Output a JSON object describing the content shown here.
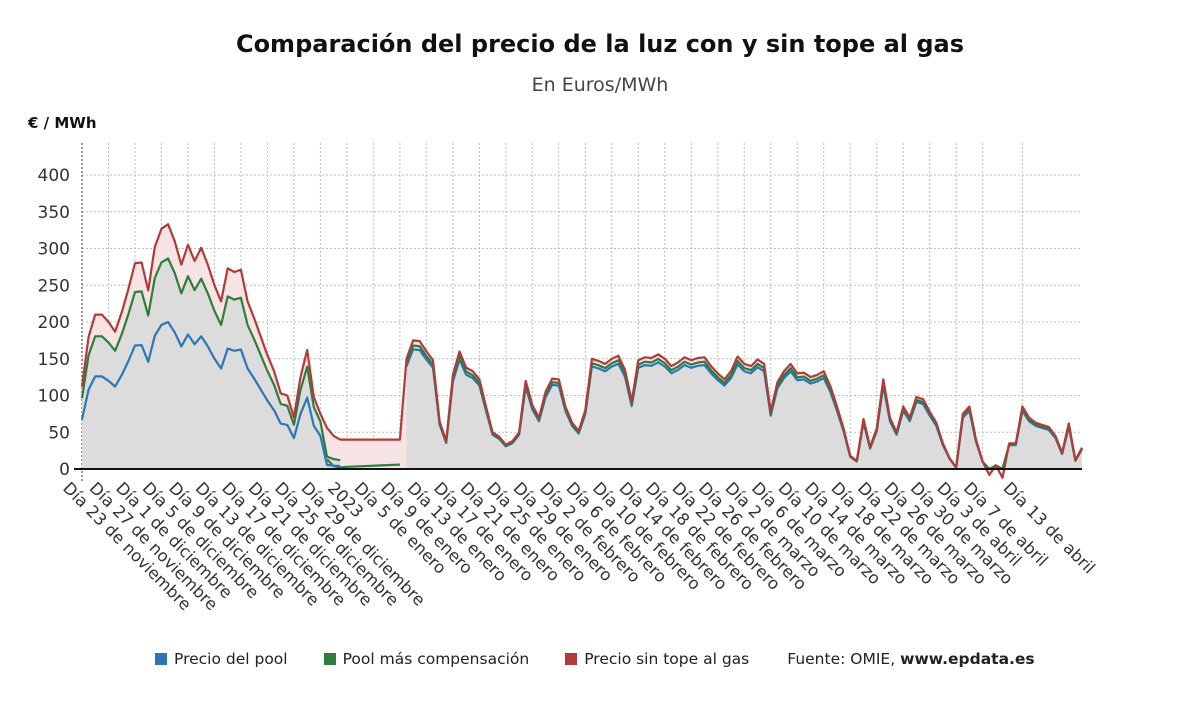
{
  "title": "Comparación del precio de la luz con y sin tope al gas",
  "subtitle": "En Euros/MWh",
  "y_unit": "€ / MWh",
  "colors": {
    "pool": "#2e75b6",
    "compensation": "#2e7d3a",
    "no_cap": "#b23a3a",
    "fill_low": "#dcdcdc",
    "fill_high": "#f6e4e4",
    "grid": "#bdbdbd"
  },
  "legend": {
    "items": [
      {
        "label": "Precio del pool",
        "color": "#2e75b6"
      },
      {
        "label": "Pool más compensación",
        "color": "#2e7d3a"
      },
      {
        "label": "Precio sin tope al gas",
        "color": "#b23a3a"
      }
    ],
    "source_label": "Fuente: OMIE,",
    "source_url": "www.epdata.es"
  },
  "chart_data": {
    "type": "line",
    "title": "Comparación del precio de la luz con y sin tope al gas",
    "subtitle": "En Euros/MWh",
    "ylabel": "€ / MWh",
    "ylim": [
      0,
      430
    ],
    "yticks": [
      0,
      50,
      100,
      150,
      200,
      250,
      300,
      350,
      400
    ],
    "grid": true,
    "legend_position": "bottom",
    "x_tick_labels": [
      "Día 23 de noviembre",
      "Día 27 de noviembre",
      "Día 1 de diciembre",
      "Día 5 de diciembre",
      "Día 9 de diciembre",
      "Día 13 de diciembre",
      "Día 17 de diciembre",
      "Día 21 de diciembre",
      "Día 25 de diciembre",
      "Día 29 de diciembre",
      "2023",
      "Día 5 de enero",
      "Día 9 de enero",
      "Día 13 de enero",
      "Día 17 de enero",
      "Día 21 de enero",
      "Día 25 de enero",
      "Día 29 de enero",
      "Día 2 de febrero",
      "Día 6 de febrero",
      "Día 10 de febrero",
      "Día 14 de febrero",
      "Día 18 de febrero",
      "Día 22 de febrero",
      "Día 26 de febrero",
      "Día 2 de marzo",
      "Día 6 de marzo",
      "Día 10 de marzo",
      "Día 14 de marzo",
      "Día 18 de marzo",
      "Día 22 de marzo",
      "Día 26 de marzo",
      "Día 30 de marzo",
      "Día 3 de abril",
      "Día 7 de abril",
      "Día 13 de abril"
    ],
    "x_range": [
      0,
      142
    ],
    "tick_positions": [
      0,
      4,
      8,
      12,
      16,
      20,
      24,
      28,
      32,
      36,
      40,
      44,
      48,
      52,
      56,
      60,
      64,
      68,
      72,
      76,
      80,
      84,
      88,
      92,
      96,
      100,
      104,
      108,
      112,
      116,
      120,
      124,
      128,
      132,
      136,
      142
    ],
    "series": [
      {
        "name": "Precio sin tope al gas",
        "points": [
          [
            0,
            112
          ],
          [
            1,
            180
          ],
          [
            2,
            210
          ],
          [
            3,
            210
          ],
          [
            4,
            200
          ],
          [
            5,
            187
          ],
          [
            6,
            213
          ],
          [
            7,
            245
          ],
          [
            8,
            280
          ],
          [
            9,
            281
          ],
          [
            10,
            243
          ],
          [
            11,
            302
          ],
          [
            12,
            327
          ],
          [
            13,
            333
          ],
          [
            14,
            310
          ],
          [
            15,
            278
          ],
          [
            16,
            305
          ],
          [
            17,
            283
          ],
          [
            18,
            301
          ],
          [
            19,
            278
          ],
          [
            20,
            250
          ],
          [
            21,
            228
          ],
          [
            22,
            273
          ],
          [
            23,
            268
          ],
          [
            24,
            271
          ],
          [
            25,
            228
          ],
          [
            26,
            205
          ],
          [
            27,
            180
          ],
          [
            28,
            155
          ],
          [
            29,
            133
          ],
          [
            30,
            103
          ],
          [
            31,
            100
          ],
          [
            32,
            70
          ],
          [
            33,
            125
          ],
          [
            34,
            162
          ],
          [
            35,
            98
          ],
          [
            36,
            75
          ],
          [
            37,
            56
          ],
          [
            38,
            45
          ],
          [
            39,
            40
          ],
          [
            40,
            40
          ],
          [
            48,
            40
          ],
          [
            49,
            150
          ],
          [
            50,
            175
          ],
          [
            51,
            174
          ],
          [
            52,
            160
          ],
          [
            53,
            148
          ],
          [
            54,
            65
          ],
          [
            55,
            38
          ],
          [
            56,
            128
          ],
          [
            57,
            160
          ],
          [
            58,
            138
          ],
          [
            59,
            133
          ],
          [
            60,
            122
          ],
          [
            61,
            85
          ],
          [
            62,
            50
          ],
          [
            63,
            44
          ],
          [
            64,
            33
          ],
          [
            65,
            38
          ],
          [
            66,
            50
          ],
          [
            67,
            120
          ],
          [
            68,
            87
          ],
          [
            69,
            70
          ],
          [
            70,
            105
          ],
          [
            71,
            123
          ],
          [
            72,
            122
          ],
          [
            73,
            85
          ],
          [
            74,
            63
          ],
          [
            75,
            52
          ],
          [
            76,
            80
          ],
          [
            77,
            150
          ],
          [
            78,
            147
          ],
          [
            79,
            143
          ],
          [
            80,
            150
          ],
          [
            81,
            154
          ],
          [
            82,
            135
          ],
          [
            83,
            92
          ],
          [
            84,
            148
          ],
          [
            85,
            152
          ],
          [
            86,
            151
          ],
          [
            87,
            156
          ],
          [
            88,
            150
          ],
          [
            89,
            140
          ],
          [
            90,
            145
          ],
          [
            91,
            152
          ],
          [
            92,
            148
          ],
          [
            93,
            151
          ],
          [
            94,
            152
          ],
          [
            95,
            140
          ],
          [
            96,
            130
          ],
          [
            97,
            122
          ],
          [
            98,
            133
          ],
          [
            99,
            153
          ],
          [
            100,
            143
          ],
          [
            101,
            140
          ],
          [
            102,
            149
          ],
          [
            103,
            143
          ],
          [
            104,
            78
          ],
          [
            105,
            118
          ],
          [
            106,
            133
          ],
          [
            107,
            143
          ],
          [
            108,
            130
          ],
          [
            109,
            131
          ],
          [
            110,
            125
          ],
          [
            111,
            128
          ],
          [
            112,
            133
          ],
          [
            113,
            113
          ],
          [
            114,
            85
          ],
          [
            115,
            55
          ],
          [
            116,
            18
          ],
          [
            117,
            11
          ],
          [
            118,
            68
          ],
          [
            119,
            30
          ],
          [
            120,
            55
          ],
          [
            121,
            122
          ],
          [
            122,
            70
          ],
          [
            123,
            50
          ],
          [
            124,
            85
          ],
          [
            125,
            70
          ],
          [
            126,
            98
          ],
          [
            127,
            95
          ],
          [
            128,
            78
          ],
          [
            129,
            63
          ],
          [
            130,
            35
          ],
          [
            131,
            15
          ],
          [
            132,
            2
          ],
          [
            133,
            75
          ],
          [
            134,
            85
          ],
          [
            135,
            40
          ],
          [
            136,
            10
          ],
          [
            137,
            -8
          ],
          [
            138,
            5
          ],
          [
            139,
            -12
          ],
          [
            140,
            35
          ],
          [
            141,
            35
          ],
          [
            142,
            85
          ]
        ],
        "points_tail": [
          [
            143,
            70
          ],
          [
            144,
            63
          ],
          [
            145,
            60
          ],
          [
            146,
            57
          ],
          [
            147,
            45
          ],
          [
            148,
            22
          ],
          [
            149,
            62
          ],
          [
            150,
            12
          ],
          [
            151,
            29
          ]
        ]
      }
    ]
  }
}
